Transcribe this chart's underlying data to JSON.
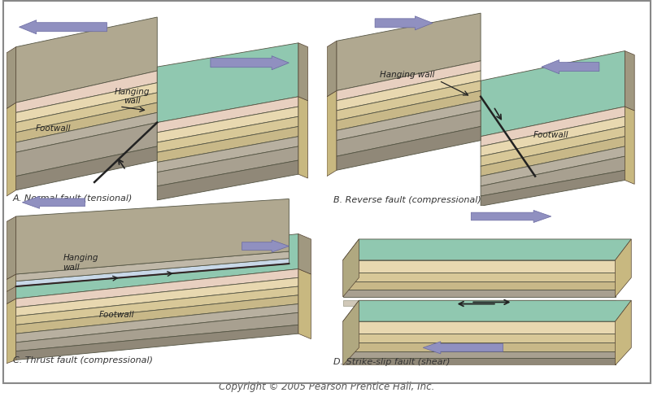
{
  "copyright": "Copyright © 2005 Pearson Prentice Hall, Inc.",
  "background_color": "#ffffff",
  "border_color": "#888888",
  "labels": {
    "A": "A. Normal fault (tensional)",
    "B": "B. Reverse fault (compressional)",
    "C": "C. Thrust fault (compressional)",
    "D": "D. Strike-slip fault (shear)"
  },
  "arrow_color": "#9090c0",
  "terrain_green": "#90c8b0",
  "terrain_gray": "#b0a890",
  "layer_tan1": "#e8d8b0",
  "layer_tan2": "#d8c898",
  "layer_tan3": "#c8b888",
  "layer_gray1": "#b8b0a0",
  "layer_gray2": "#a8a090",
  "layer_pink": "#e8d0c0",
  "layer_blue": "#c8d8e8",
  "side_tan": "#c8b880",
  "bottom_gray": "#908878",
  "text_color": "#222222",
  "label_color": "#333333"
}
